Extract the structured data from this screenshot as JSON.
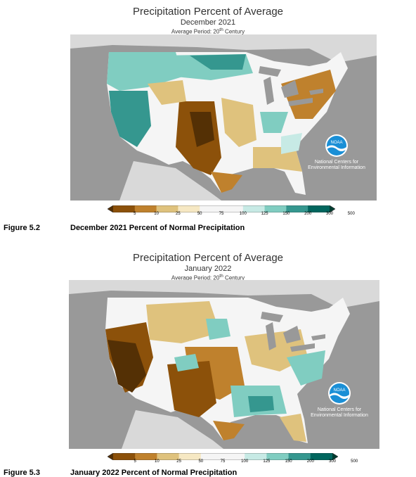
{
  "figures": [
    {
      "title": "Precipitation Percent of Average",
      "month": "December 2021",
      "period": "Average Period: 20",
      "period_sup": "th",
      "period_suffix": " Century",
      "noaa_label": "NOAA",
      "noaa_caption": "National Centers for Environmental Information",
      "caption_number": "Figure 5.2",
      "caption_text": "December 2021 Percent of Normal Precipitation"
    },
    {
      "title": "Precipitation Percent of Average",
      "month": "January 2022",
      "period": "Average Period: 20",
      "period_sup": "th",
      "period_suffix": " Century",
      "noaa_label": "NOAA",
      "noaa_caption": "National Centers for Environmental Information",
      "caption_number": "Figure 5.3",
      "caption_text": "January 2022 Percent of Normal Precipitation"
    }
  ],
  "legend": {
    "ticks": [
      "5",
      "10",
      "25",
      "50",
      "75",
      "100",
      "125",
      "150",
      "200",
      "300",
      "500"
    ],
    "colors": [
      "#543005",
      "#8c510a",
      "#bf812d",
      "#dfc27d",
      "#f6e8c3",
      "#f5f5f5",
      "#f5f5f5",
      "#c7eae5",
      "#80cdc1",
      "#35978f",
      "#01665e",
      "#003c30"
    ]
  },
  "map_colors": {
    "ocean": "#999999",
    "land_outside": "#cfcfcf",
    "lakes": "#999999",
    "noaa_blue": "#1a8fd6"
  }
}
